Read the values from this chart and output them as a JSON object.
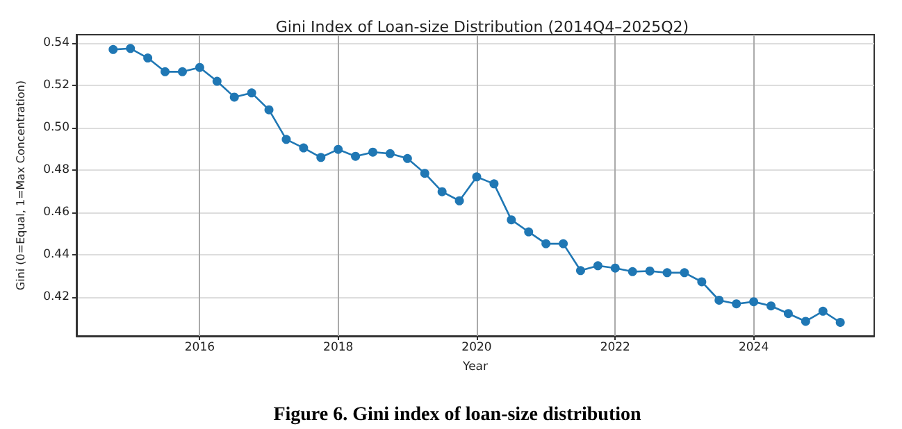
{
  "chart_data": {
    "type": "line",
    "title": "Gini Index of Loan-size Distribution (2014Q4–2025Q2)",
    "xlabel": "Year",
    "ylabel": "Gini (0=Equal, 1=Max Concentration)",
    "annotations": [
      "Figure 6. Gini index of loan-size distribution"
    ],
    "x": [
      2014.75,
      2015,
      2015.25,
      2015.5,
      2015.75,
      2016,
      2016.25,
      2016.5,
      2016.75,
      2017,
      2017.25,
      2017.5,
      2017.75,
      2018,
      2018.25,
      2018.5,
      2018.75,
      2019,
      2019.25,
      2019.5,
      2019.75,
      2020,
      2020.25,
      2020.5,
      2020.75,
      2021,
      2021.25,
      2021.5,
      2021.75,
      2022,
      2022.25,
      2022.5,
      2022.75,
      2023,
      2023.25,
      2023.5,
      2023.75,
      2024,
      2024.25,
      2024.5,
      2024.75,
      2025,
      2025.25
    ],
    "series": [
      {
        "color": "#1f77b4",
        "values": [
          0.537,
          0.5375,
          0.533,
          0.5265,
          0.5265,
          0.5285,
          0.522,
          0.5145,
          0.5165,
          0.5085,
          0.4945,
          0.4905,
          0.486,
          0.4898,
          0.4865,
          0.4885,
          0.4878,
          0.4855,
          0.4785,
          0.4698,
          0.4655,
          0.4768,
          0.4735,
          0.4565,
          0.4508,
          0.4452,
          0.4452,
          0.4325,
          0.4348,
          0.4337,
          0.432,
          0.4323,
          0.4315,
          0.4315,
          0.4272,
          0.4185,
          0.4168,
          0.4178,
          0.4158,
          0.4122,
          0.4085,
          0.4133,
          0.408
        ]
      }
    ],
    "xlim": [
      2014.22,
      2025.74
    ],
    "xticks": [
      2016,
      2018,
      2020,
      2022,
      2024
    ],
    "ylim": [
      0.4016,
      0.544
    ],
    "yticks": [
      0.42,
      0.44,
      0.46,
      0.48,
      {
        "value": 0.5,
        "label": "0.50"
      },
      0.52,
      0.54
    ],
    "grid": true,
    "marker": "circle",
    "line_style": "solid"
  }
}
